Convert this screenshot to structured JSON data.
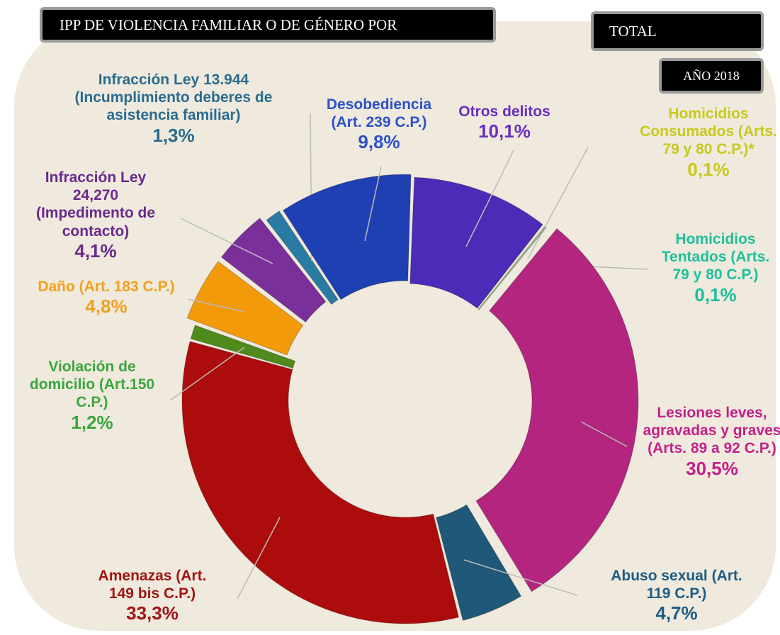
{
  "header": {
    "title": "IPP DE VIOLENCIA FAMILIAR O DE GÉNERO POR",
    "scope": "TOTAL",
    "year": "AÑO 2018"
  },
  "chart_data": {
    "type": "donut",
    "categories": [
      "Otros delitos",
      "Homicidios Consumados (Arts. 79 y 80 C.P.)*",
      "Homicidios Tentados (Arts. 79 y 80 C.P.)",
      "Lesiones leves, agravadas y graves (Arts. 89 a 92 C.P.)",
      "Abuso sexual (Art. 119 C.P.)",
      "Amenazas (Art. 149 bis C.P.)",
      "Violación de domicilio (Art.150 C.P.)",
      "Daño (Art. 183 C.P.)",
      "Infracción Ley 24,270 (Impedimento de contacto)",
      "Infracción Ley 13.944 (Incumplimiento deberes de asistencia familiar)",
      "Desobediencia (Art. 239 C.P.)"
    ],
    "values": [
      10.1,
      0.1,
      0.1,
      30.5,
      4.7,
      33.3,
      1.2,
      4.8,
      4.1,
      1.3,
      9.8
    ],
    "value_labels": [
      "10,1%",
      "0,1%",
      "0,1%",
      "30,5%",
      "4,7%",
      "33,3%",
      "1,2%",
      "4,8%",
      "4,1%",
      "1,3%",
      "9,8%"
    ],
    "colors": [
      "#4b2bb8",
      "#c9c926",
      "#2ec8a0",
      "#b3257f",
      "#1f5878",
      "#ad0c0c",
      "#4f8a1c",
      "#f29a0a",
      "#7b2f9b",
      "#2a7ba3",
      "#1f40b3"
    ],
    "label_colors": [
      "#6a2fc2",
      "#c8c81e",
      "#1fbf9c",
      "#c4208a",
      "#1f5c85",
      "#a31414",
      "#3aa640",
      "#f2a11e",
      "#6a2a8c",
      "#2a6c8f",
      "#2c52c9"
    ]
  }
}
